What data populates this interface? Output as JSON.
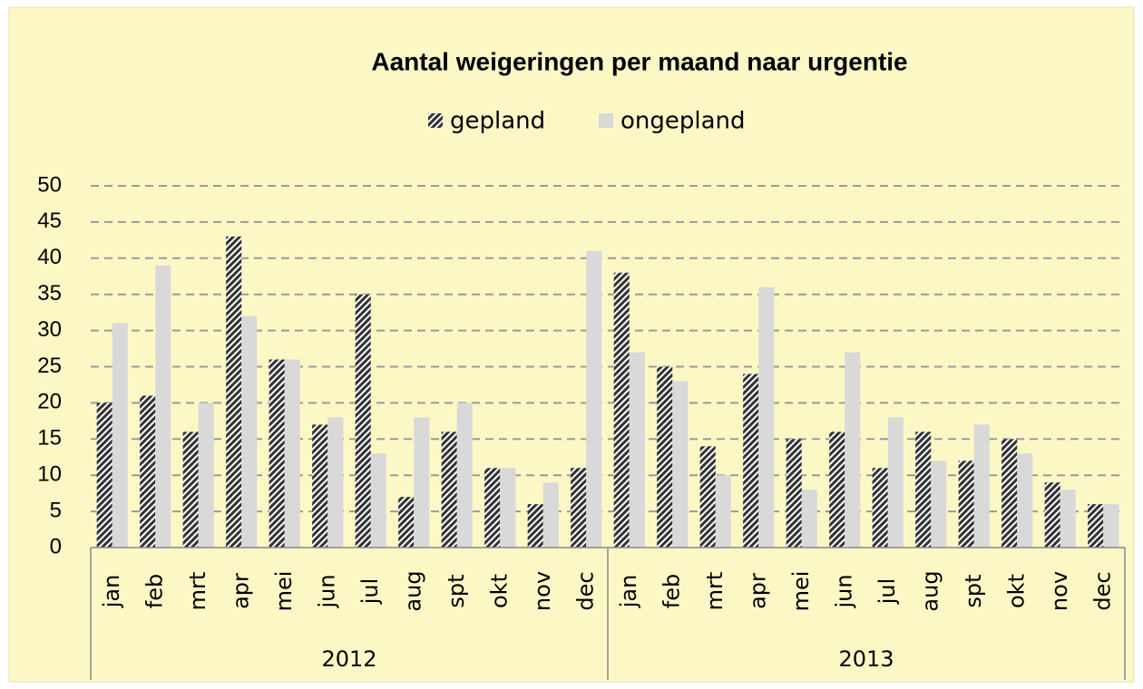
{
  "chart_data": {
    "type": "bar",
    "title": "Aantal weigeringen per maand naar urgentie",
    "groups": [
      {
        "name": "2012",
        "categories": [
          "jan",
          "feb",
          "mrt",
          "apr",
          "mei",
          "jun",
          "jul",
          "aug",
          "spt",
          "okt",
          "nov",
          "dec"
        ]
      },
      {
        "name": "2013",
        "categories": [
          "jan",
          "feb",
          "mrt",
          "apr",
          "mei",
          "jun",
          "jul",
          "aug",
          "spt",
          "okt",
          "nov",
          "dec"
        ]
      }
    ],
    "series": [
      {
        "name": "gepland",
        "color": "#333333",
        "pattern": "hatch",
        "values": [
          20,
          21,
          16,
          43,
          26,
          17,
          35,
          7,
          16,
          11,
          6,
          11,
          38,
          25,
          14,
          24,
          15,
          16,
          11,
          16,
          12,
          15,
          9,
          6
        ]
      },
      {
        "name": "ongepland",
        "color": "#d9d9d9",
        "values": [
          31,
          39,
          20,
          32,
          26,
          18,
          13,
          18,
          20,
          11,
          9,
          41,
          27,
          23,
          10,
          36,
          8,
          27,
          18,
          12,
          17,
          13,
          8,
          6
        ]
      }
    ],
    "ylim": [
      0,
      50
    ],
    "yticks": [
      0,
      5,
      10,
      15,
      20,
      25,
      30,
      35,
      40,
      45,
      50
    ],
    "grid": true,
    "legend": "top"
  }
}
